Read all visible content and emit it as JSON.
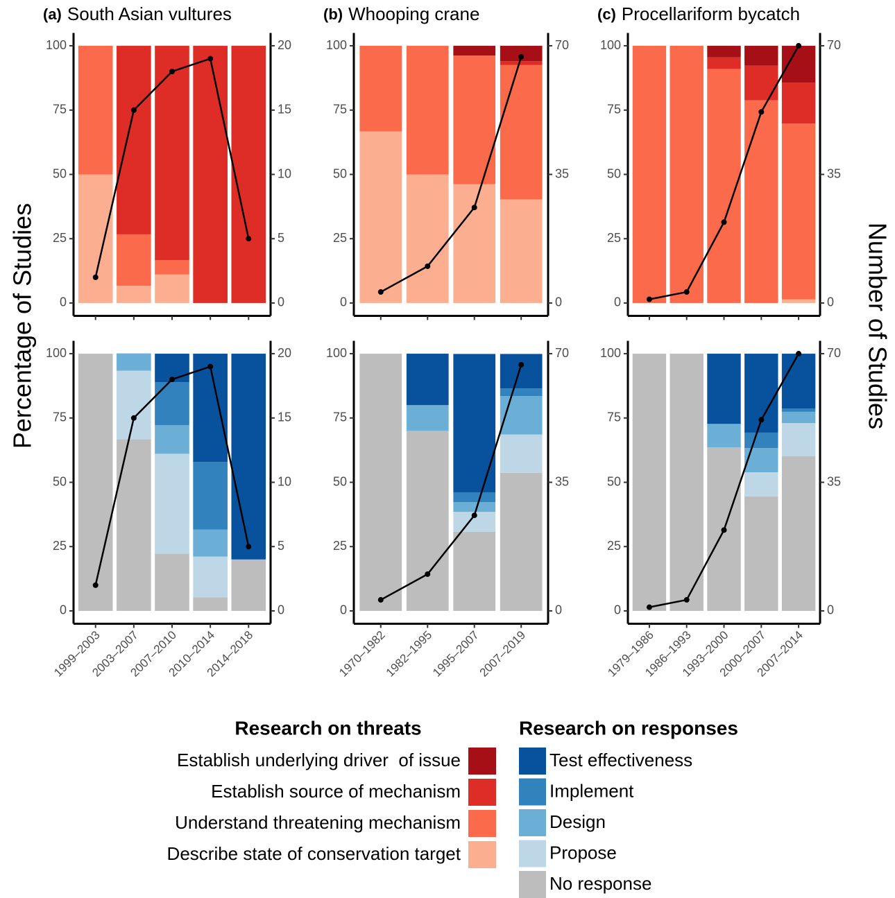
{
  "y_axis_label": "Percentage of Studies",
  "y2_axis_label": "Number of Studies",
  "legend_titles": {
    "threats": "Research on threats",
    "responses": "Research on responses"
  },
  "chart_data": [
    {
      "type": "bar",
      "stacked": true,
      "panel": "(a)",
      "title": "South Asian vultures",
      "categories": [
        "1999–2003",
        "2003–2007",
        "2007–2010",
        "2010–2014",
        "2014–2018"
      ],
      "ylim": [
        -5,
        105
      ],
      "yticks": [
        0,
        25,
        50,
        75,
        100
      ],
      "y2lim": [
        -1,
        21
      ],
      "y2ticks": [
        0,
        5,
        10,
        15,
        20
      ],
      "counts": {
        "type": "line",
        "axis": "y2",
        "color": "#000000",
        "values": [
          2,
          15,
          18,
          19,
          5
        ]
      },
      "threats": [
        {
          "name": "Establish underlying driver  of issue",
          "color": "#a50f15",
          "values": [
            0,
            0,
            0,
            0,
            0
          ]
        },
        {
          "name": "Establish source of mechanism",
          "color": "#de2d26",
          "values": [
            0,
            73.3,
            83.3,
            100,
            100
          ]
        },
        {
          "name": "Understand threatening mechanism",
          "color": "#fb6a4a",
          "values": [
            50,
            20,
            5.6,
            0,
            0
          ]
        },
        {
          "name": "Describe state of conservation target",
          "color": "#fcae91",
          "values": [
            50,
            6.7,
            11.1,
            0,
            0
          ]
        }
      ],
      "responses": [
        {
          "name": "Test effectiveness",
          "color": "#08519c",
          "values": [
            0,
            0,
            11.1,
            42.1,
            80
          ]
        },
        {
          "name": "Implement",
          "color": "#3182bd",
          "values": [
            0,
            0,
            16.7,
            26.3,
            0
          ]
        },
        {
          "name": "Design",
          "color": "#6baed6",
          "values": [
            0,
            6.7,
            11.1,
            10.5,
            0
          ]
        },
        {
          "name": "Propose",
          "color": "#bdd7e7",
          "values": [
            0,
            26.7,
            38.9,
            15.8,
            0
          ]
        },
        {
          "name": "No response",
          "color": "#bdbdbd",
          "values": [
            100,
            66.7,
            22.2,
            5.3,
            20
          ]
        }
      ]
    },
    {
      "type": "bar",
      "stacked": true,
      "panel": "(b)",
      "title": "Whooping crane",
      "categories": [
        "1970–1982",
        "1982–1995",
        "1995–2007",
        "2007–2019"
      ],
      "ylim": [
        -5,
        105
      ],
      "yticks": [
        0,
        25,
        50,
        75,
        100
      ],
      "y2lim": [
        -3.5,
        73.5
      ],
      "y2ticks": [
        0,
        35,
        70
      ],
      "counts": {
        "type": "line",
        "axis": "y2",
        "color": "#000000",
        "values": [
          3,
          10,
          26,
          67
        ]
      },
      "threats": [
        {
          "name": "Establish underlying driver  of issue",
          "color": "#a50f15",
          "values": [
            0,
            0,
            3.8,
            6.0
          ]
        },
        {
          "name": "Establish source of mechanism",
          "color": "#de2d26",
          "values": [
            0,
            0,
            0,
            1.5
          ]
        },
        {
          "name": "Understand threatening mechanism",
          "color": "#fb6a4a",
          "values": [
            33.3,
            50,
            50,
            52.2
          ]
        },
        {
          "name": "Describe state of conservation target",
          "color": "#fcae91",
          "values": [
            66.7,
            50,
            46.2,
            40.3
          ]
        }
      ],
      "responses": [
        {
          "name": "Test effectiveness",
          "color": "#08519c",
          "values": [
            0,
            20,
            53.8,
            13.4
          ]
        },
        {
          "name": "Implement",
          "color": "#3182bd",
          "values": [
            0,
            0,
            3.8,
            3.0
          ]
        },
        {
          "name": "Design",
          "color": "#6baed6",
          "values": [
            0,
            10,
            3.8,
            14.9
          ]
        },
        {
          "name": "Propose",
          "color": "#bdd7e7",
          "values": [
            0,
            0,
            7.7,
            14.9
          ]
        },
        {
          "name": "No response",
          "color": "#bdbdbd",
          "values": [
            100,
            70,
            30.8,
            53.7
          ]
        }
      ]
    },
    {
      "type": "bar",
      "stacked": true,
      "panel": "(c)",
      "title": "Procellariform bycatch",
      "categories": [
        "1979–1986",
        "1986–1993",
        "1993–2000",
        "2000–2007",
        "2007–2014"
      ],
      "ylim": [
        -5,
        105
      ],
      "yticks": [
        0,
        25,
        50,
        75,
        100
      ],
      "y2lim": [
        -3.5,
        73.5
      ],
      "y2ticks": [
        0,
        35,
        70
      ],
      "counts": {
        "type": "line",
        "axis": "y2",
        "color": "#000000",
        "values": [
          1,
          3,
          22,
          52,
          70
        ]
      },
      "threats": [
        {
          "name": "Establish underlying driver  of issue",
          "color": "#a50f15",
          "values": [
            0,
            0,
            4.5,
            7.7,
            14.3
          ]
        },
        {
          "name": "Establish source of mechanism",
          "color": "#de2d26",
          "values": [
            0,
            0,
            4.5,
            13.5,
            15.9
          ]
        },
        {
          "name": "Understand threatening mechanism",
          "color": "#fb6a4a",
          "values": [
            100,
            100,
            91,
            78.8,
            68.4
          ]
        },
        {
          "name": "Describe state of conservation target",
          "color": "#fcae91",
          "values": [
            0,
            0,
            0,
            0,
            1.4
          ]
        }
      ],
      "responses": [
        {
          "name": "Test effectiveness",
          "color": "#08519c",
          "values": [
            0,
            0,
            27.3,
            30.7,
            21.3
          ]
        },
        {
          "name": "Implement",
          "color": "#3182bd",
          "values": [
            0,
            0,
            0,
            6,
            1.3
          ]
        },
        {
          "name": "Design",
          "color": "#6baed6",
          "values": [
            0,
            0,
            9.1,
            9.4,
            4.4
          ]
        },
        {
          "name": "Propose",
          "color": "#bdd7e7",
          "values": [
            0,
            0,
            0,
            9.4,
            12.9
          ]
        },
        {
          "name": "No response",
          "color": "#bdbdbd",
          "values": [
            100,
            100,
            63.6,
            44.5,
            60.1
          ]
        }
      ]
    }
  ]
}
